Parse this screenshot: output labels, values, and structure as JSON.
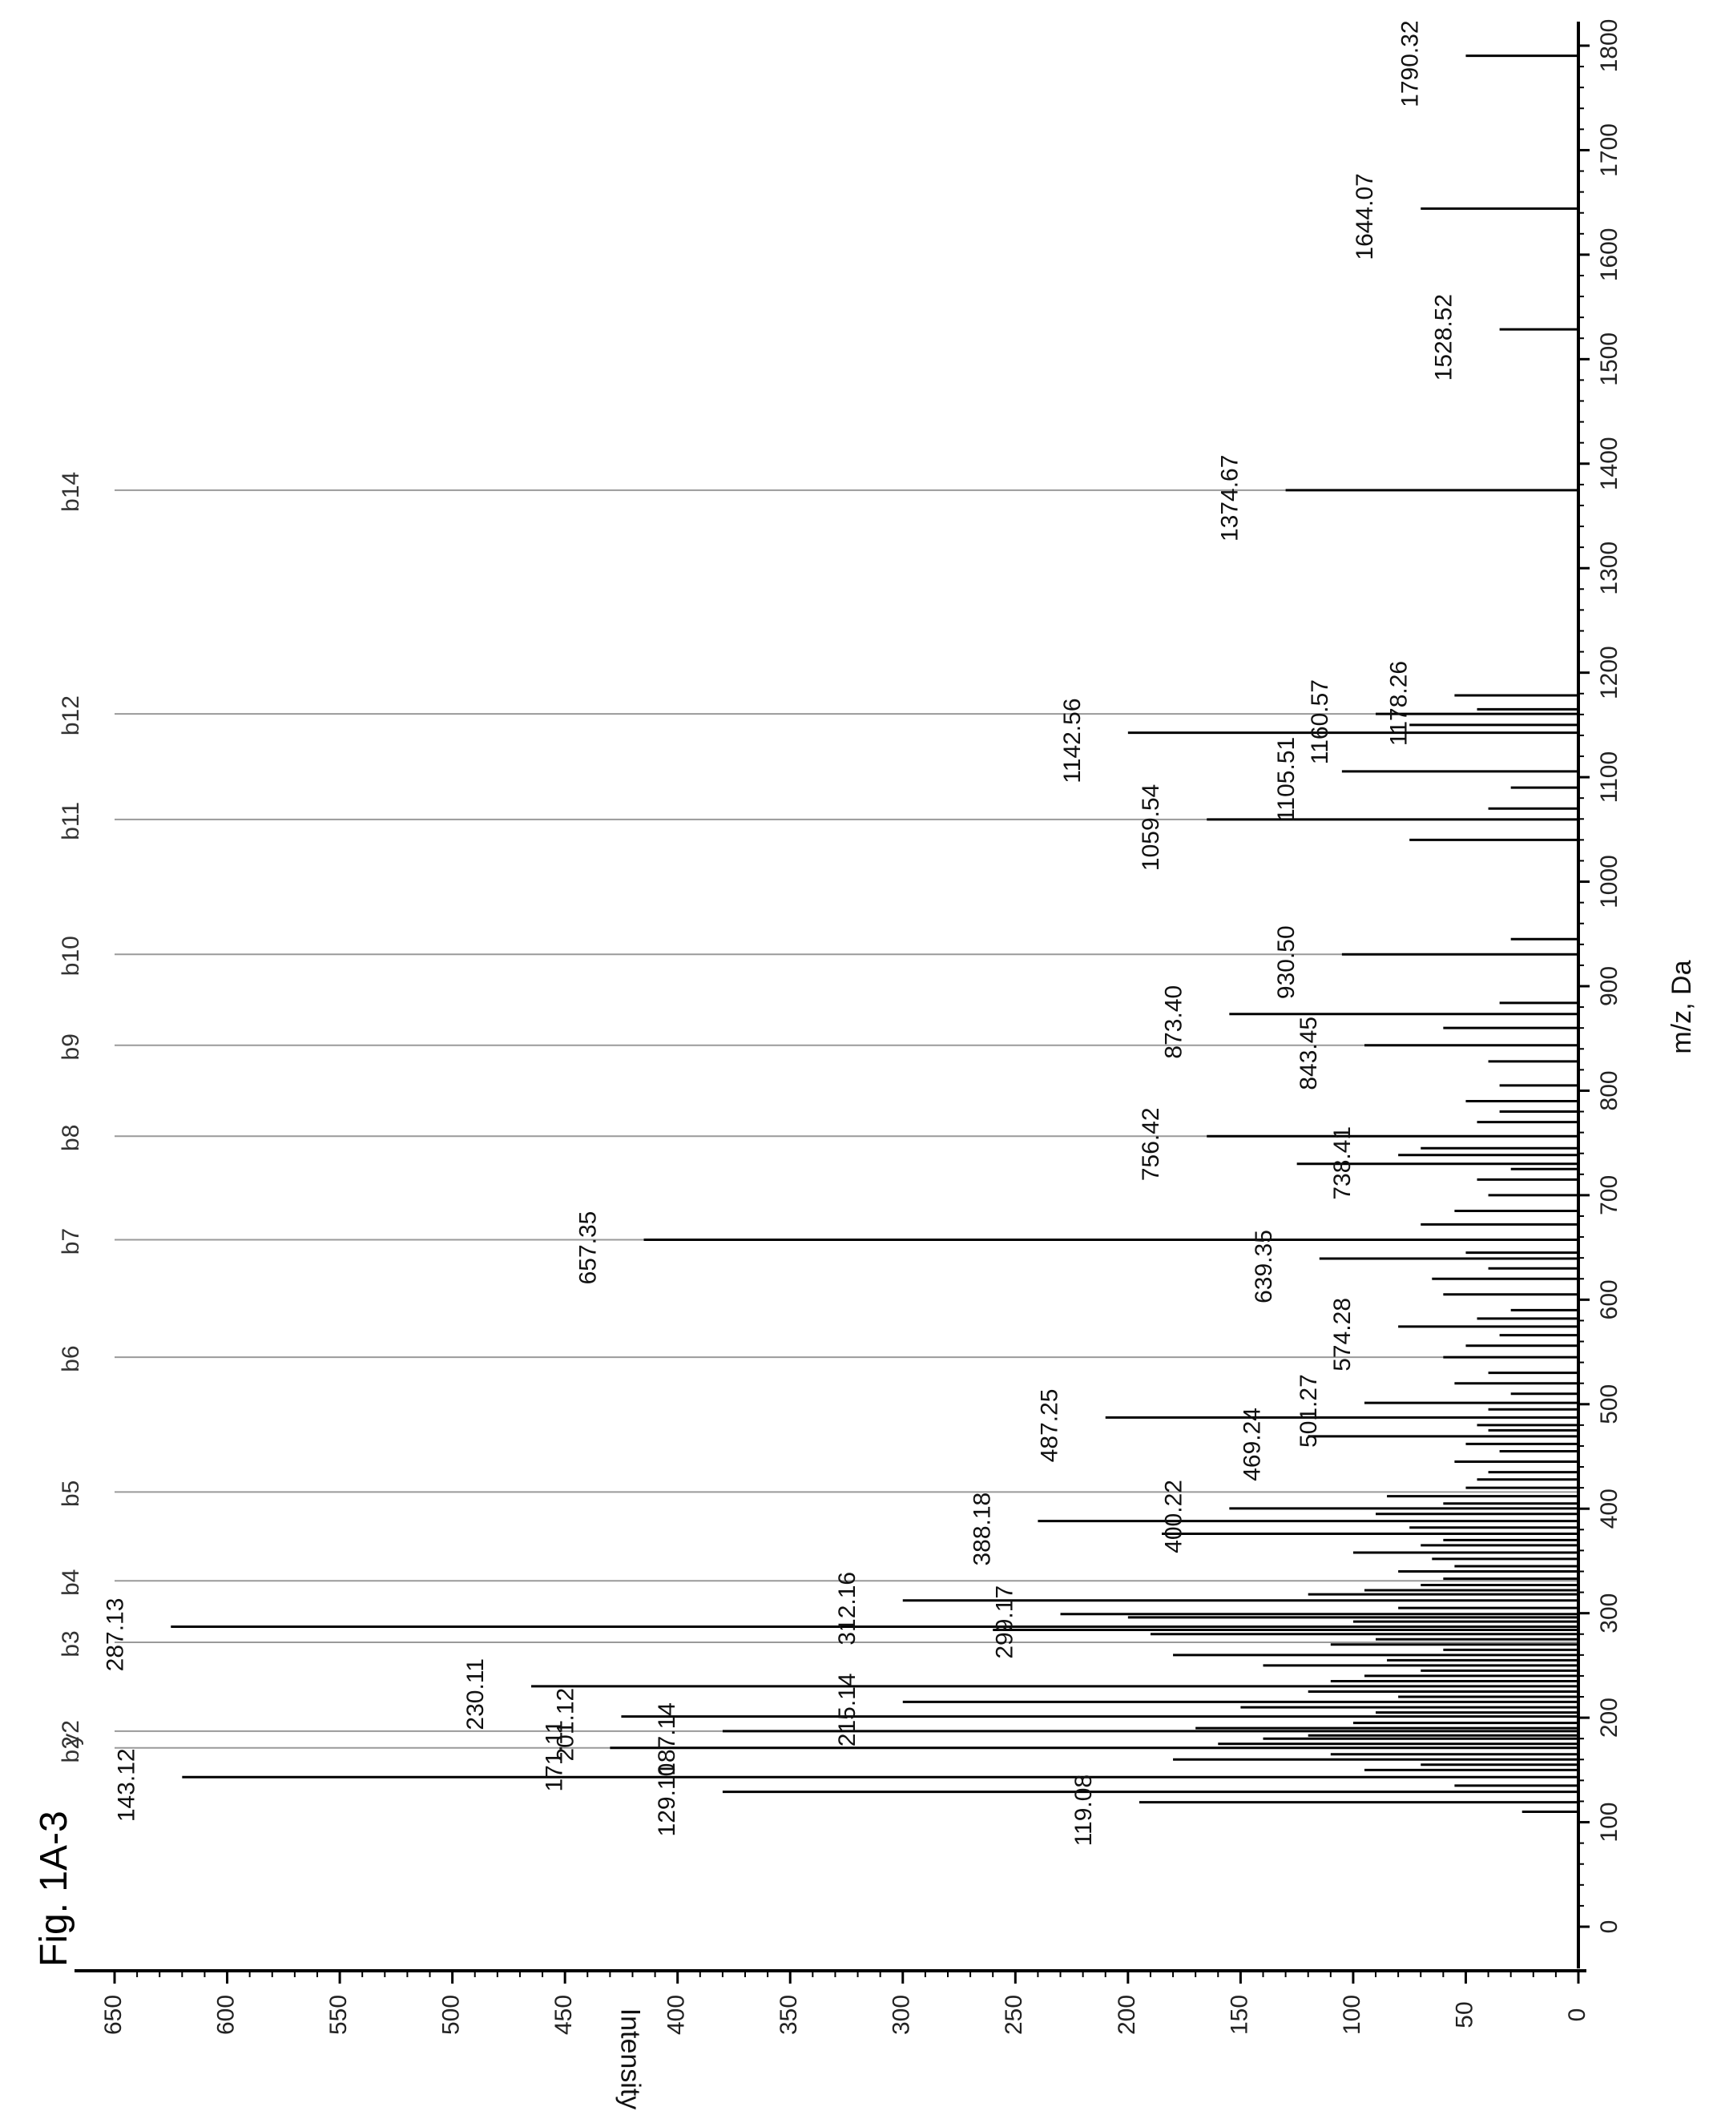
{
  "figure_label": "Fig. 1A-3",
  "chart_data": {
    "type": "bar",
    "orientation": "rotated-90-ccw",
    "xlabel": "m/z, Da",
    "ylabel": "Intensity",
    "xlim": [
      0,
      1800
    ],
    "ylim": [
      0,
      650
    ],
    "x_ticks": [
      0,
      100,
      200,
      300,
      400,
      500,
      600,
      700,
      800,
      900,
      1000,
      1100,
      1200,
      1300,
      1400,
      1500,
      1600,
      1700,
      1800
    ],
    "y_ticks": [
      0,
      50,
      100,
      150,
      200,
      250,
      300,
      350,
      400,
      450,
      500,
      550,
      600,
      650
    ],
    "labeled_peaks": [
      {
        "mz": 119.08,
        "intensity": 195,
        "label": "119.08"
      },
      {
        "mz": 129.1,
        "intensity": 380,
        "label": "129.10"
      },
      {
        "mz": 143.12,
        "intensity": 620,
        "label": "143.12"
      },
      {
        "mz": 171.11,
        "intensity": 430,
        "label": "171.11"
      },
      {
        "mz": 187.14,
        "intensity": 380,
        "label": "187.14"
      },
      {
        "mz": 201.12,
        "intensity": 425,
        "label": "201.12"
      },
      {
        "mz": 215.14,
        "intensity": 300,
        "label": "215.14"
      },
      {
        "mz": 230.11,
        "intensity": 465,
        "label": "230.11"
      },
      {
        "mz": 287.13,
        "intensity": 625,
        "label": "287.13"
      },
      {
        "mz": 299.17,
        "intensity": 230,
        "label": "299.17"
      },
      {
        "mz": 312.16,
        "intensity": 300,
        "label": "312.16"
      },
      {
        "mz": 388.18,
        "intensity": 240,
        "label": "388.18"
      },
      {
        "mz": 400.22,
        "intensity": 155,
        "label": "400.22"
      },
      {
        "mz": 469.24,
        "intensity": 120,
        "label": "469.24"
      },
      {
        "mz": 487.25,
        "intensity": 210,
        "label": "487.25"
      },
      {
        "mz": 501.27,
        "intensity": 95,
        "label": "501.27"
      },
      {
        "mz": 574.28,
        "intensity": 80,
        "label": "574.28"
      },
      {
        "mz": 639.35,
        "intensity": 115,
        "label": "639.35"
      },
      {
        "mz": 657.35,
        "intensity": 415,
        "label": "657.35"
      },
      {
        "mz": 738.41,
        "intensity": 80,
        "label": "738.41"
      },
      {
        "mz": 756.42,
        "intensity": 165,
        "label": "756.42"
      },
      {
        "mz": 843.45,
        "intensity": 95,
        "label": "843.45"
      },
      {
        "mz": 873.4,
        "intensity": 155,
        "label": "873.40"
      },
      {
        "mz": 930.5,
        "intensity": 105,
        "label": "930.50"
      },
      {
        "mz": 1059.54,
        "intensity": 165,
        "label": "1059.54"
      },
      {
        "mz": 1105.51,
        "intensity": 105,
        "label": "1105.51"
      },
      {
        "mz": 1142.56,
        "intensity": 200,
        "label": "1142.56"
      },
      {
        "mz": 1160.57,
        "intensity": 90,
        "label": "1160.57"
      },
      {
        "mz": 1178.26,
        "intensity": 55,
        "label": "1178.26"
      },
      {
        "mz": 1374.67,
        "intensity": 130,
        "label": "1374.67"
      },
      {
        "mz": 1528.52,
        "intensity": 35,
        "label": "1528.52"
      },
      {
        "mz": 1644.07,
        "intensity": 70,
        "label": "1644.07"
      },
      {
        "mz": 1790.32,
        "intensity": 50,
        "label": "1790.32"
      }
    ],
    "minor_peaks": [
      {
        "mz": 110,
        "intensity": 25
      },
      {
        "mz": 135,
        "intensity": 55
      },
      {
        "mz": 150,
        "intensity": 95
      },
      {
        "mz": 155,
        "intensity": 70
      },
      {
        "mz": 160,
        "intensity": 180
      },
      {
        "mz": 165,
        "intensity": 110
      },
      {
        "mz": 175,
        "intensity": 160
      },
      {
        "mz": 180,
        "intensity": 140
      },
      {
        "mz": 183,
        "intensity": 120
      },
      {
        "mz": 190,
        "intensity": 170
      },
      {
        "mz": 195,
        "intensity": 100
      },
      {
        "mz": 205,
        "intensity": 90
      },
      {
        "mz": 210,
        "intensity": 150
      },
      {
        "mz": 220,
        "intensity": 80
      },
      {
        "mz": 225,
        "intensity": 120
      },
      {
        "mz": 235,
        "intensity": 110
      },
      {
        "mz": 240,
        "intensity": 95
      },
      {
        "mz": 245,
        "intensity": 70
      },
      {
        "mz": 250,
        "intensity": 140
      },
      {
        "mz": 255,
        "intensity": 85
      },
      {
        "mz": 260,
        "intensity": 180
      },
      {
        "mz": 265,
        "intensity": 60
      },
      {
        "mz": 270,
        "intensity": 110
      },
      {
        "mz": 275,
        "intensity": 90
      },
      {
        "mz": 280,
        "intensity": 190
      },
      {
        "mz": 284,
        "intensity": 260
      },
      {
        "mz": 292,
        "intensity": 100
      },
      {
        "mz": 296,
        "intensity": 200
      },
      {
        "mz": 305,
        "intensity": 80
      },
      {
        "mz": 318,
        "intensity": 120
      },
      {
        "mz": 322,
        "intensity": 95
      },
      {
        "mz": 327,
        "intensity": 70
      },
      {
        "mz": 333,
        "intensity": 60
      },
      {
        "mz": 340,
        "intensity": 80
      },
      {
        "mz": 345,
        "intensity": 55
      },
      {
        "mz": 352,
        "intensity": 65
      },
      {
        "mz": 358,
        "intensity": 100
      },
      {
        "mz": 365,
        "intensity": 70
      },
      {
        "mz": 370,
        "intensity": 60
      },
      {
        "mz": 376,
        "intensity": 185
      },
      {
        "mz": 382,
        "intensity": 75
      },
      {
        "mz": 395,
        "intensity": 90
      },
      {
        "mz": 405,
        "intensity": 60
      },
      {
        "mz": 412,
        "intensity": 85
      },
      {
        "mz": 420,
        "intensity": 50
      },
      {
        "mz": 428,
        "intensity": 45
      },
      {
        "mz": 435,
        "intensity": 40
      },
      {
        "mz": 445,
        "intensity": 55
      },
      {
        "mz": 455,
        "intensity": 35
      },
      {
        "mz": 462,
        "intensity": 50
      },
      {
        "mz": 475,
        "intensity": 40
      },
      {
        "mz": 480,
        "intensity": 45
      },
      {
        "mz": 495,
        "intensity": 40
      },
      {
        "mz": 510,
        "intensity": 30
      },
      {
        "mz": 520,
        "intensity": 55
      },
      {
        "mz": 530,
        "intensity": 40
      },
      {
        "mz": 545,
        "intensity": 60
      },
      {
        "mz": 556,
        "intensity": 50
      },
      {
        "mz": 566,
        "intensity": 35
      },
      {
        "mz": 582,
        "intensity": 45
      },
      {
        "mz": 590,
        "intensity": 30
      },
      {
        "mz": 605,
        "intensity": 60
      },
      {
        "mz": 620,
        "intensity": 65
      },
      {
        "mz": 630,
        "intensity": 40
      },
      {
        "mz": 645,
        "intensity": 50
      },
      {
        "mz": 672,
        "intensity": 70
      },
      {
        "mz": 685,
        "intensity": 55
      },
      {
        "mz": 700,
        "intensity": 40
      },
      {
        "mz": 715,
        "intensity": 45
      },
      {
        "mz": 725,
        "intensity": 30
      },
      {
        "mz": 730,
        "intensity": 125
      },
      {
        "mz": 745,
        "intensity": 70
      },
      {
        "mz": 770,
        "intensity": 45
      },
      {
        "mz": 780,
        "intensity": 35
      },
      {
        "mz": 790,
        "intensity": 50
      },
      {
        "mz": 805,
        "intensity": 35
      },
      {
        "mz": 828,
        "intensity": 40
      },
      {
        "mz": 860,
        "intensity": 60
      },
      {
        "mz": 884,
        "intensity": 35
      },
      {
        "mz": 945,
        "intensity": 30
      },
      {
        "mz": 1040,
        "intensity": 75
      },
      {
        "mz": 1070,
        "intensity": 40
      },
      {
        "mz": 1090,
        "intensity": 30
      },
      {
        "mz": 1150,
        "intensity": 75
      },
      {
        "mz": 1165,
        "intensity": 45
      }
    ],
    "fragment_ions": [
      {
        "label": "b2",
        "mz": 171.11
      },
      {
        "label": "y2",
        "mz": 187.14
      },
      {
        "label": "b3",
        "mz": 272.16
      },
      {
        "label": "b4",
        "mz": 331.0
      },
      {
        "label": "b5",
        "mz": 416.0
      },
      {
        "label": "b6",
        "mz": 545.0
      },
      {
        "label": "b7",
        "mz": 657.35
      },
      {
        "label": "b8",
        "mz": 756.42
      },
      {
        "label": "b9",
        "mz": 843.45
      },
      {
        "label": "b10",
        "mz": 930.5
      },
      {
        "label": "b11",
        "mz": 1059.54
      },
      {
        "label": "b12",
        "mz": 1160.57
      },
      {
        "label": "b14",
        "mz": 1374.67
      }
    ],
    "grid": false,
    "legend": "none"
  }
}
